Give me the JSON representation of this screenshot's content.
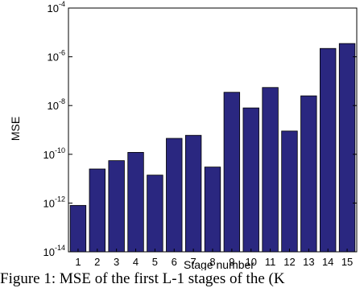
{
  "caption": "Figure 1: MSE of the first L-1 stages of the (K",
  "chart_data": {
    "type": "bar",
    "title": "",
    "xlabel": "Stage number",
    "ylabel": "MSE",
    "yscale": "log",
    "ylim": [
      1e-14,
      0.0001
    ],
    "y_tick_exponents": [
      "-14",
      "-12",
      "-10",
      "-8",
      "-6",
      "-4"
    ],
    "categories": [
      "1",
      "2",
      "3",
      "4",
      "5",
      "6",
      "7",
      "8",
      "9",
      "10",
      "11",
      "12",
      "13",
      "14",
      "15"
    ],
    "values": [
      8e-13,
      2.5e-11,
      5.5e-11,
      1.2e-10,
      1.4e-11,
      4.5e-10,
      6e-10,
      3e-11,
      3.5e-08,
      8e-09,
      5.5e-08,
      9e-10,
      2.5e-08,
      2.2e-06,
      3.5e-06
    ],
    "bar_color": "#2a2780",
    "grid": false,
    "legend": "none"
  }
}
